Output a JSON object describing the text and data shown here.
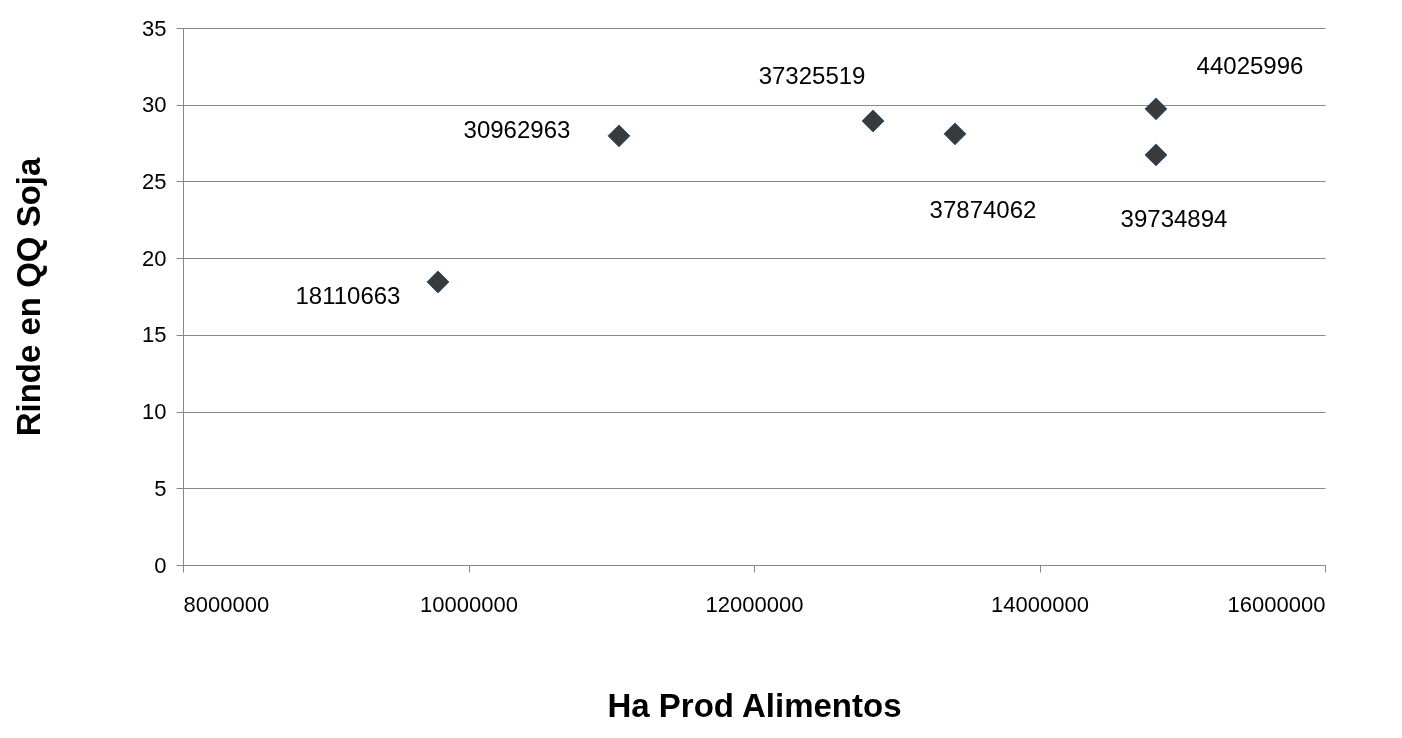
{
  "chart_data": {
    "type": "scatter",
    "xlabel": "Ha Prod Alimentos",
    "ylabel": "Rinde en QQ Soja",
    "x": [
      9786000,
      11054000,
      12834000,
      13408000,
      14816000,
      14816000
    ],
    "series": [
      {
        "color": "#3a3a3a",
        "values": [
          18.45,
          27.97,
          28.94,
          28.1,
          29.73,
          26.73
        ]
      }
    ],
    "annotations": [
      {
        "text": "18110663",
        "x": 9786000,
        "y": 18.45
      },
      {
        "text": "30962963",
        "x": 11054000,
        "y": 27.97
      },
      {
        "text": "37325519",
        "x": 12834000,
        "y": 28.94
      },
      {
        "text": "37874062",
        "x": 13408000,
        "y": 28.1
      },
      {
        "text": "44025996",
        "x": 14816000,
        "y": 29.73
      },
      {
        "text": "39734894",
        "x": 14816000,
        "y": 26.73
      }
    ],
    "xlim": [
      8000000,
      16000000
    ],
    "xticks": [
      8000000,
      10000000,
      12000000,
      14000000,
      16000000
    ],
    "ylim": [
      0,
      35
    ],
    "yticks": [
      0,
      5,
      10,
      15,
      20,
      25,
      30,
      35
    ],
    "grid": "y",
    "marker": "diamond"
  }
}
